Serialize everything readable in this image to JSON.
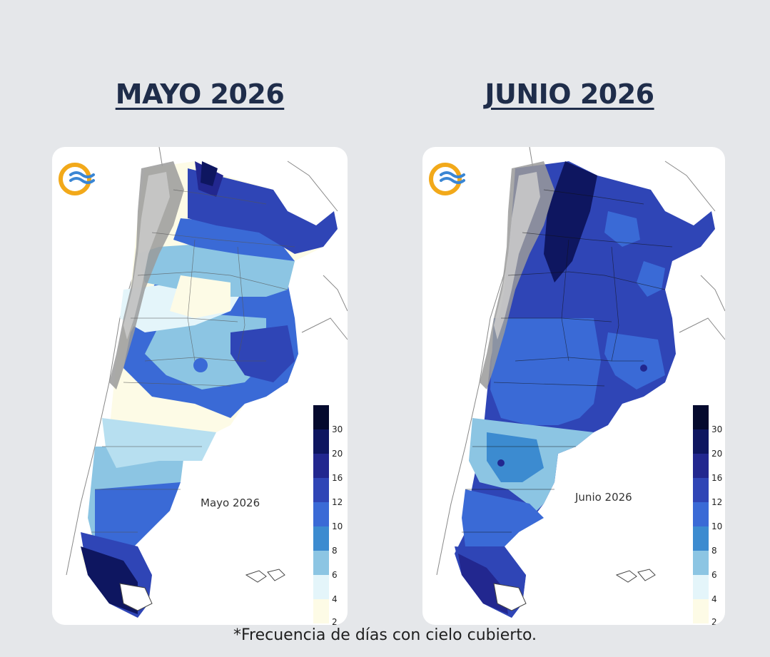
{
  "panels": [
    {
      "title": "MAYO 2026",
      "map_label": "Mayo 2026"
    },
    {
      "title": "JUNIO 2026",
      "map_label": "Junio 2026"
    }
  ],
  "legend": {
    "ticks": [
      "30",
      "20",
      "16",
      "12",
      "10",
      "8",
      "6",
      "4",
      "2"
    ],
    "colors": [
      "#050a2e",
      "#0e1660",
      "#22278f",
      "#2f45b6",
      "#3a6ad6",
      "#3c8bd0",
      "#8cc5e3",
      "#e4f5fa",
      "#fdfbe6"
    ]
  },
  "footnote": "*Frecuencia de días con cielo cubierto.",
  "logo": {
    "icon": "smn-logo-icon",
    "colors": {
      "ring": "#f2a91a",
      "waves": "#3a86d4"
    }
  }
}
